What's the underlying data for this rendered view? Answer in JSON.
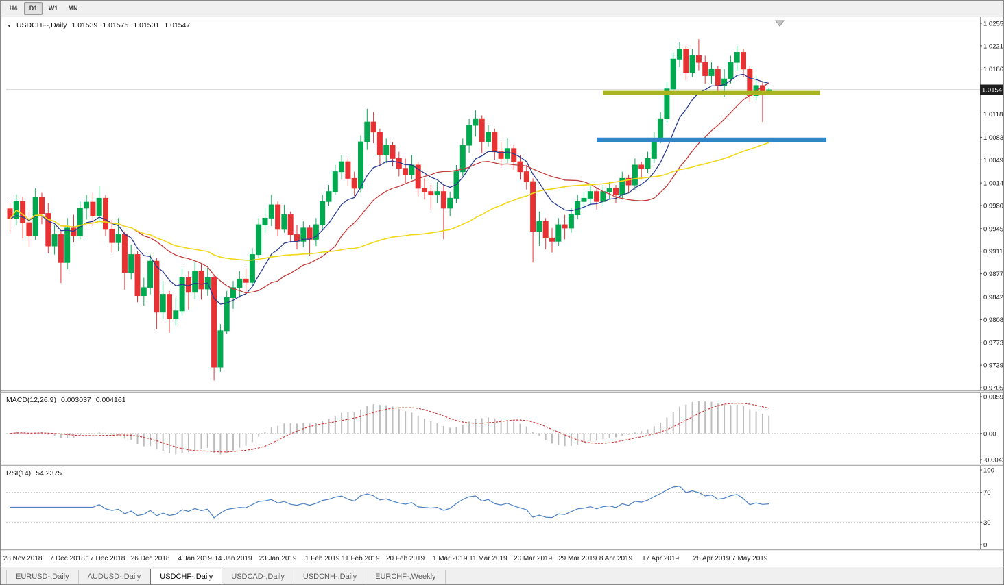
{
  "toolbar": {
    "timeframes": [
      {
        "label": "H4",
        "active": false
      },
      {
        "label": "D1",
        "active": true
      },
      {
        "label": "W1",
        "active": false
      },
      {
        "label": "MN",
        "active": false
      }
    ]
  },
  "header": {
    "symbol": "USDCHF-,Daily",
    "open": "1.01539",
    "high": "1.01575",
    "low": "1.01501",
    "close": "1.01547"
  },
  "price_axis": {
    "ticks": [
      "1.02550",
      "1.02210",
      "1.01860",
      "1.01180",
      "1.00830",
      "1.00490",
      "1.00140",
      "0.99800",
      "0.99450",
      "0.99110",
      "0.98770",
      "0.98420",
      "0.98080",
      "0.97730",
      "0.97390",
      "0.97050"
    ],
    "current_price": "1.01547"
  },
  "indicators": {
    "macd": {
      "label": "MACD(12,26,9)",
      "value_main": "0.003037",
      "value_signal": "0.004161",
      "axis_ticks": [
        "0.00597",
        "0.00",
        "-0.00424"
      ],
      "fast": 12,
      "slow": 26,
      "signal": 9
    },
    "rsi": {
      "label": "RSI(14)",
      "value": "54.2375",
      "axis_ticks": [
        "100",
        "70",
        "30",
        "0"
      ],
      "period": 14,
      "levels": [
        70,
        30
      ]
    }
  },
  "colors": {
    "bull": "#00a84f",
    "bear": "#e63232",
    "bid_line": "#bdbdbd",
    "macd_hist": "#bdbdbd",
    "macd_signal": "#cf3a3a",
    "rsi_line": "#4a81c4",
    "levels": "#c4c4c4",
    "axis_text": "#1a1a1a",
    "badge_bg": "#1c1c1c",
    "badge_text": "#ffffff"
  },
  "tabs": [
    {
      "label": "EURUSD-,Daily",
      "active": false
    },
    {
      "label": "AUDUSD-,Daily",
      "active": false
    },
    {
      "label": "USDCHF-,Daily",
      "active": true
    },
    {
      "label": "USDCAD-,Daily",
      "active": false
    },
    {
      "label": "USDCNH-,Daily",
      "active": false
    },
    {
      "label": "EURCHF-,Weekly",
      "active": false
    }
  ],
  "chart_data": {
    "type": "candlestick",
    "symbol": "USDCHF",
    "timeframe": "Daily",
    "y_range": [
      0.9705,
      1.0255
    ],
    "x_ticks": [
      {
        "label": "28 Nov 2018",
        "date": "2018-11-28"
      },
      {
        "label": "7 Dec 2018",
        "date": "2018-12-07"
      },
      {
        "label": "17 Dec 2018",
        "date": "2018-12-17"
      },
      {
        "label": "26 Dec 2018",
        "date": "2018-12-26"
      },
      {
        "label": "4 Jan 2019",
        "date": "2019-01-04"
      },
      {
        "label": "14 Jan 2019",
        "date": "2019-01-14"
      },
      {
        "label": "23 Jan 2019",
        "date": "2019-01-23"
      },
      {
        "label": "1 Feb 2019",
        "date": "2019-02-01"
      },
      {
        "label": "11 Feb 2019",
        "date": "2019-02-11"
      },
      {
        "label": "20 Feb 2019",
        "date": "2019-02-20"
      },
      {
        "label": "1 Mar 2019",
        "date": "2019-03-01"
      },
      {
        "label": "11 Mar 2019",
        "date": "2019-03-11"
      },
      {
        "label": "20 Mar 2019",
        "date": "2019-03-20"
      },
      {
        "label": "29 Mar 2019",
        "date": "2019-03-29"
      },
      {
        "label": "8 Apr 2019",
        "date": "2019-04-08"
      },
      {
        "label": "17 Apr 2019",
        "date": "2019-04-17"
      },
      {
        "label": "28 Apr 2019",
        "date": "2019-04-28"
      },
      {
        "label": "7 May 2019",
        "date": "2019-05-07"
      }
    ],
    "moving_averages": [
      {
        "type": "ema",
        "period": 10,
        "color": "#2a3d8f",
        "width": 1.3
      },
      {
        "type": "sma",
        "period": 20,
        "color": "#c23a3a",
        "width": 1.3
      },
      {
        "type": "sma",
        "period": 50,
        "color": "#f0d818",
        "width": 1.6
      }
    ],
    "drawn_lines": [
      {
        "name": "resistance-line",
        "price": 1.015,
        "from_index": 93,
        "to_index": 127,
        "color": "#a9b520",
        "thickness": 6
      },
      {
        "name": "support-line",
        "price": 1.0079,
        "from_index": 92,
        "to_index": 128,
        "color": "#2f86c9",
        "thickness": 7
      }
    ],
    "ohlc": [
      [
        "2018-11-26",
        0.9975,
        0.9985,
        0.9938,
        0.996
      ],
      [
        "2018-11-27",
        0.996,
        0.9997,
        0.995,
        0.9986
      ],
      [
        "2018-11-28",
        0.9986,
        0.9993,
        0.993,
        0.9954
      ],
      [
        "2018-11-29",
        0.9954,
        0.997,
        0.9918,
        0.9934
      ],
      [
        "2018-11-30",
        0.9934,
        1.0006,
        0.9928,
        0.9992
      ],
      [
        "2018-12-03",
        0.9992,
        0.9999,
        0.9952,
        0.9968
      ],
      [
        "2018-12-04",
        0.9968,
        0.9984,
        0.9908,
        0.9919
      ],
      [
        "2018-12-05",
        0.9919,
        0.995,
        0.9906,
        0.9936
      ],
      [
        "2018-12-06",
        0.9936,
        0.9941,
        0.9863,
        0.9894
      ],
      [
        "2018-12-07",
        0.9894,
        0.9961,
        0.9884,
        0.9946
      ],
      [
        "2018-12-10",
        0.9946,
        0.9966,
        0.9924,
        0.9934
      ],
      [
        "2018-12-11",
        0.9934,
        0.9986,
        0.9929,
        0.9976
      ],
      [
        "2018-12-12",
        0.9976,
        0.9996,
        0.9959,
        0.9985
      ],
      [
        "2018-12-13",
        0.9985,
        0.9999,
        0.9949,
        0.9964
      ],
      [
        "2018-12-14",
        0.9964,
        1.0009,
        0.9957,
        0.9991
      ],
      [
        "2018-12-17",
        0.9991,
        0.9996,
        0.9934,
        0.9944
      ],
      [
        "2018-12-18",
        0.9944,
        0.9958,
        0.9909,
        0.9924
      ],
      [
        "2018-12-19",
        0.9924,
        0.9961,
        0.9911,
        0.9936
      ],
      [
        "2018-12-20",
        0.9936,
        0.9941,
        0.9853,
        0.9879
      ],
      [
        "2018-12-21",
        0.9879,
        0.9921,
        0.9868,
        0.9906
      ],
      [
        "2018-12-24",
        0.9906,
        0.9911,
        0.9834,
        0.9844
      ],
      [
        "2018-12-25",
        0.9844,
        0.9871,
        0.9829,
        0.9856
      ],
      [
        "2018-12-26",
        0.9856,
        0.9906,
        0.9846,
        0.9896
      ],
      [
        "2018-12-27",
        0.9896,
        0.9901,
        0.9793,
        0.9819
      ],
      [
        "2018-12-28",
        0.9819,
        0.9866,
        0.9809,
        0.9846
      ],
      [
        "2018-12-31",
        0.9846,
        0.9851,
        0.9788,
        0.9809
      ],
      [
        "2019-01-01",
        0.9809,
        0.9841,
        0.9799,
        0.9821
      ],
      [
        "2019-01-02",
        0.9821,
        0.9886,
        0.9814,
        0.9871
      ],
      [
        "2019-01-03",
        0.9871,
        0.9881,
        0.9823,
        0.9849
      ],
      [
        "2019-01-04",
        0.9849,
        0.9896,
        0.9839,
        0.9881
      ],
      [
        "2019-01-07",
        0.9881,
        0.9891,
        0.9838,
        0.9854
      ],
      [
        "2019-01-08",
        0.9854,
        0.9886,
        0.9844,
        0.9871
      ],
      [
        "2019-01-09",
        0.9871,
        0.9876,
        0.9716,
        0.9736
      ],
      [
        "2019-01-10",
        0.9736,
        0.9801,
        0.9729,
        0.9791
      ],
      [
        "2019-01-11",
        0.9791,
        0.9851,
        0.9786,
        0.9841
      ],
      [
        "2019-01-14",
        0.9841,
        0.9866,
        0.9824,
        0.9856
      ],
      [
        "2019-01-15",
        0.9856,
        0.9881,
        0.9841,
        0.9869
      ],
      [
        "2019-01-16",
        0.9869,
        0.9886,
        0.9849,
        0.9864
      ],
      [
        "2019-01-17",
        0.9864,
        0.9916,
        0.9859,
        0.9906
      ],
      [
        "2019-01-18",
        0.9906,
        0.9961,
        0.9901,
        0.9951
      ],
      [
        "2019-01-21",
        0.9951,
        0.9976,
        0.9939,
        0.9961
      ],
      [
        "2019-01-22",
        0.9961,
        0.9996,
        0.9949,
        0.9981
      ],
      [
        "2019-01-23",
        0.9981,
        0.9986,
        0.9934,
        0.9944
      ],
      [
        "2019-01-24",
        0.9944,
        0.9981,
        0.9939,
        0.9966
      ],
      [
        "2019-01-25",
        0.9966,
        0.9971,
        0.9924,
        0.9936
      ],
      [
        "2019-01-28",
        0.9936,
        0.9951,
        0.9914,
        0.9926
      ],
      [
        "2019-01-29",
        0.9926,
        0.9956,
        0.9917,
        0.9946
      ],
      [
        "2019-01-30",
        0.9946,
        0.9951,
        0.9904,
        0.9929
      ],
      [
        "2019-01-31",
        0.9929,
        0.9961,
        0.9919,
        0.9951
      ],
      [
        "2019-02-01",
        0.9951,
        0.9996,
        0.9944,
        0.9986
      ],
      [
        "2019-02-04",
        0.9986,
        1.0011,
        0.9979,
        1.0001
      ],
      [
        "2019-02-05",
        1.0001,
        1.0041,
        0.9996,
        1.0031
      ],
      [
        "2019-02-06",
        1.0031,
        1.0056,
        1.0019,
        1.0046
      ],
      [
        "2019-02-07",
        1.0046,
        1.0051,
        1.0009,
        1.0021
      ],
      [
        "2019-02-08",
        1.0021,
        1.0031,
        0.9994,
        1.0006
      ],
      [
        "2019-02-11",
        1.0006,
        1.0086,
        0.9999,
        1.0076
      ],
      [
        "2019-02-12",
        1.0076,
        1.0126,
        1.0064,
        1.0106
      ],
      [
        "2019-02-13",
        1.0106,
        1.0121,
        1.0074,
        1.0091
      ],
      [
        "2019-02-14",
        1.0091,
        1.0096,
        1.0039,
        1.0056
      ],
      [
        "2019-02-15",
        1.0056,
        1.0081,
        1.0044,
        1.0071
      ],
      [
        "2019-02-18",
        1.0071,
        1.0076,
        1.0039,
        1.0051
      ],
      [
        "2019-02-19",
        1.0051,
        1.0061,
        1.0024,
        1.0036
      ],
      [
        "2019-02-20",
        1.0036,
        1.0051,
        1.0014,
        1.0026
      ],
      [
        "2019-02-21",
        1.0026,
        1.0056,
        1.0019,
        1.0041
      ],
      [
        "2019-02-22",
        1.0041,
        1.0046,
        0.9994,
        1.0006
      ],
      [
        "2019-02-25",
        1.0006,
        1.0021,
        0.9989,
        1.0001
      ],
      [
        "2019-02-26",
        1.0001,
        1.0011,
        0.9974,
        0.9996
      ],
      [
        "2019-02-27",
        0.9996,
        1.0016,
        0.9984,
        1.0001
      ],
      [
        "2019-02-28",
        1.0001,
        1.0011,
        0.9929,
        0.9976
      ],
      [
        "2019-03-01",
        0.9976,
        1.0001,
        0.9964,
        0.9991
      ],
      [
        "2019-03-04",
        0.9991,
        1.0041,
        0.9984,
        1.0031
      ],
      [
        "2019-03-05",
        1.0031,
        1.0081,
        1.0024,
        1.0071
      ],
      [
        "2019-03-06",
        1.0071,
        1.0111,
        1.0059,
        1.0101
      ],
      [
        "2019-03-07",
        1.0101,
        1.0124,
        1.0084,
        1.0111
      ],
      [
        "2019-03-08",
        1.0111,
        1.0116,
        1.0059,
        1.0076
      ],
      [
        "2019-03-11",
        1.0076,
        1.0101,
        1.0069,
        1.0091
      ],
      [
        "2019-03-12",
        1.0091,
        1.0096,
        1.0049,
        1.0061
      ],
      [
        "2019-03-13",
        1.0061,
        1.0076,
        1.0039,
        1.0051
      ],
      [
        "2019-03-14",
        1.0051,
        1.0081,
        1.0044,
        1.0066
      ],
      [
        "2019-03-15",
        1.0066,
        1.0071,
        1.0034,
        1.0046
      ],
      [
        "2019-03-18",
        1.0046,
        1.0056,
        1.0019,
        1.0031
      ],
      [
        "2019-03-19",
        1.0031,
        1.0041,
        1.0004,
        1.0016
      ],
      [
        "2019-03-20",
        1.0016,
        1.0021,
        0.9894,
        0.9941
      ],
      [
        "2019-03-21",
        0.9941,
        0.9971,
        0.9919,
        0.9956
      ],
      [
        "2019-03-22",
        0.9956,
        0.9961,
        0.9914,
        0.9931
      ],
      [
        "2019-03-25",
        0.9931,
        0.9946,
        0.9909,
        0.9926
      ],
      [
        "2019-03-26",
        0.9926,
        0.9961,
        0.9919,
        0.9951
      ],
      [
        "2019-03-27",
        0.9951,
        0.9966,
        0.9929,
        0.9946
      ],
      [
        "2019-03-28",
        0.9946,
        0.9976,
        0.9939,
        0.9966
      ],
      [
        "2019-03-29",
        0.9966,
        0.9996,
        0.9959,
        0.9986
      ],
      [
        "2019-04-01",
        0.9986,
        1.0001,
        0.9974,
        0.9991
      ],
      [
        "2019-04-02",
        0.9991,
        1.0011,
        0.9979,
        1.0001
      ],
      [
        "2019-04-03",
        1.0001,
        1.0006,
        0.9974,
        0.9986
      ],
      [
        "2019-04-04",
        0.9986,
        1.0011,
        0.9979,
        1.0001
      ],
      [
        "2019-04-05",
        1.0001,
        1.0016,
        0.9989,
        1.0006
      ],
      [
        "2019-04-08",
        1.0006,
        1.0011,
        0.9984,
        0.9996
      ],
      [
        "2019-04-09",
        0.9996,
        1.0031,
        0.9989,
        1.0021
      ],
      [
        "2019-04-10",
        1.0021,
        1.0026,
        0.9999,
        1.0011
      ],
      [
        "2019-04-11",
        1.0011,
        1.0051,
        1.0004,
        1.0041
      ],
      [
        "2019-04-12",
        1.0041,
        1.0046,
        1.0019,
        1.0036
      ],
      [
        "2019-04-15",
        1.0036,
        1.0061,
        1.0029,
        1.0051
      ],
      [
        "2019-04-16",
        1.0051,
        1.0091,
        1.0044,
        1.0081
      ],
      [
        "2019-04-17",
        1.0081,
        1.0121,
        1.0074,
        1.0111
      ],
      [
        "2019-04-18",
        1.0111,
        1.0166,
        1.0104,
        1.0156
      ],
      [
        "2019-04-19",
        1.0156,
        1.0211,
        1.0149,
        1.0201
      ],
      [
        "2019-04-22",
        1.0201,
        1.0226,
        1.0189,
        1.0216
      ],
      [
        "2019-04-23",
        1.0216,
        1.0221,
        1.0169,
        1.0181
      ],
      [
        "2019-04-24",
        1.0181,
        1.0216,
        1.0174,
        1.0206
      ],
      [
        "2019-04-25",
        1.0206,
        1.0231,
        1.0184,
        1.0196
      ],
      [
        "2019-04-26",
        1.0196,
        1.0206,
        1.0164,
        1.0176
      ],
      [
        "2019-04-29",
        1.0176,
        1.0196,
        1.0164,
        1.0186
      ],
      [
        "2019-04-30",
        1.0186,
        1.0191,
        1.0149,
        1.0161
      ],
      [
        "2019-05-01",
        1.0161,
        1.0186,
        1.0144,
        1.0171
      ],
      [
        "2019-05-02",
        1.0171,
        1.0206,
        1.0164,
        1.0196
      ],
      [
        "2019-05-03",
        1.0196,
        1.0221,
        1.0184,
        1.0211
      ],
      [
        "2019-05-06",
        1.0211,
        1.0216,
        1.0174,
        1.0186
      ],
      [
        "2019-05-07",
        1.0186,
        1.0191,
        1.0136,
        1.0146
      ],
      [
        "2019-05-08",
        1.0146,
        1.0176,
        1.0139,
        1.0161
      ],
      [
        "2019-05-09",
        1.0161,
        1.0166,
        1.0106,
        1.0151
      ],
      [
        "2019-05-10",
        1.01539,
        1.01575,
        1.01501,
        1.01547
      ]
    ]
  }
}
